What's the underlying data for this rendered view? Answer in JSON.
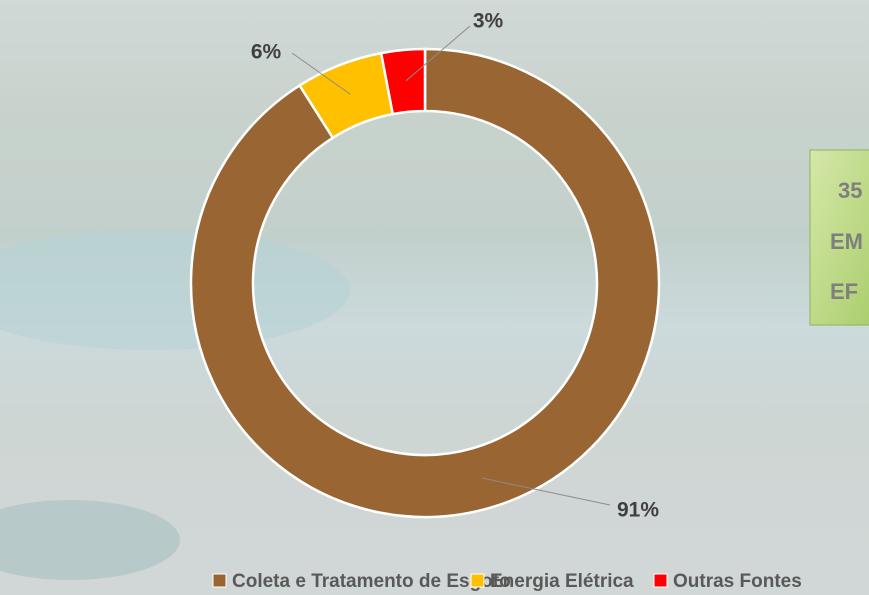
{
  "chart_data": {
    "type": "doughnut",
    "categories": [
      "Coleta e Tratamento de Esgoto",
      "Energia Elétrica",
      "Outras Fontes"
    ],
    "values": [
      91,
      6,
      3
    ],
    "value_labels": [
      "91%",
      "6%",
      "3%"
    ],
    "colors": [
      "#996633",
      "#ffc000",
      "#ff0000"
    ],
    "legend": "bottom"
  },
  "side_box": {
    "lines": [
      "35",
      "EM",
      "EF"
    ]
  }
}
